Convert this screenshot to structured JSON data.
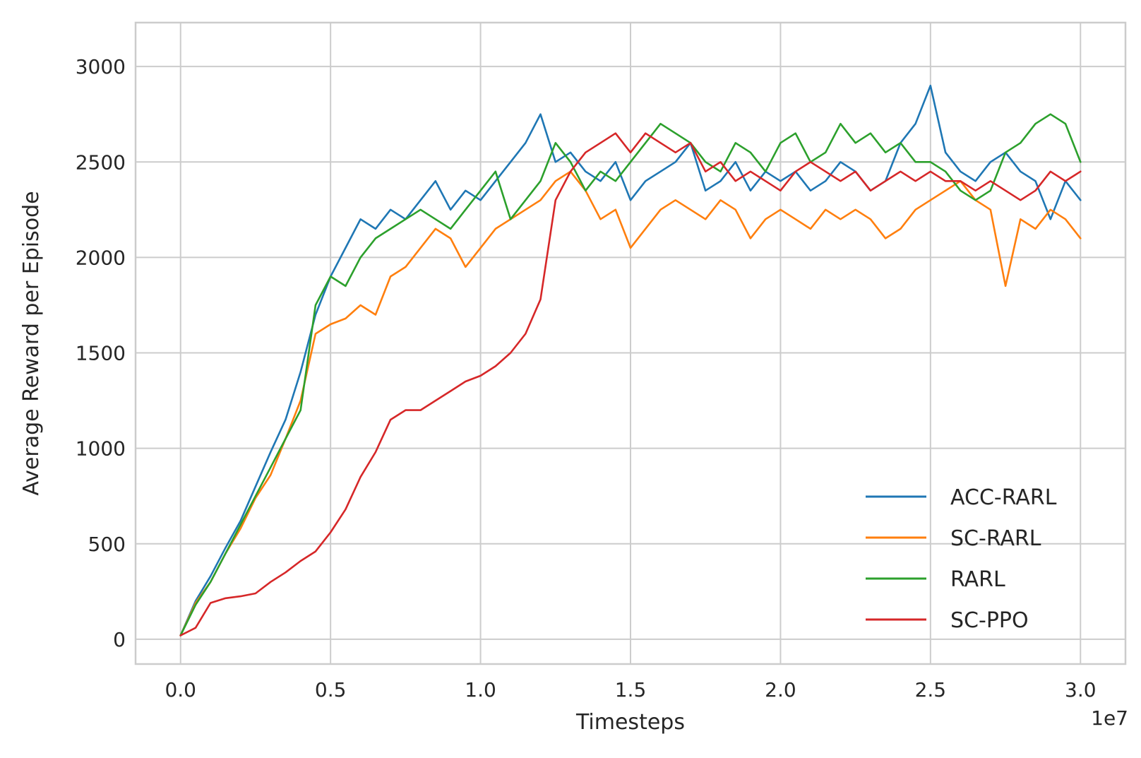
{
  "chart_data": {
    "type": "line",
    "title": "",
    "xlabel": "Timesteps",
    "ylabel": "Average Reward per Episode",
    "x_offset_label": "1e7",
    "xlim": [
      -0.15,
      3.15
    ],
    "ylim": [
      -130,
      3230
    ],
    "x_ticks": [
      0.0,
      0.5,
      1.0,
      1.5,
      2.0,
      2.5,
      3.0
    ],
    "x_tick_labels": [
      "0.0",
      "0.5",
      "1.0",
      "1.5",
      "2.0",
      "2.5",
      "3.0"
    ],
    "y_ticks": [
      0,
      500,
      1000,
      1500,
      2000,
      2500,
      3000
    ],
    "y_tick_labels": [
      "0",
      "500",
      "1000",
      "1500",
      "2000",
      "2500",
      "3000"
    ],
    "grid": true,
    "legend_position": "bottom-right",
    "x": [
      0.0,
      0.05,
      0.1,
      0.15,
      0.2,
      0.25,
      0.3,
      0.35,
      0.4,
      0.45,
      0.5,
      0.55,
      0.6,
      0.65,
      0.7,
      0.75,
      0.8,
      0.85,
      0.9,
      0.95,
      1.0,
      1.05,
      1.1,
      1.15,
      1.2,
      1.25,
      1.3,
      1.35,
      1.4,
      1.45,
      1.5,
      1.55,
      1.6,
      1.65,
      1.7,
      1.75,
      1.8,
      1.85,
      1.9,
      1.95,
      2.0,
      2.05,
      2.1,
      2.15,
      2.2,
      2.25,
      2.3,
      2.35,
      2.4,
      2.45,
      2.5,
      2.55,
      2.6,
      2.65,
      2.7,
      2.75,
      2.8,
      2.85,
      2.9,
      2.95,
      3.0
    ],
    "series": [
      {
        "name": "ACC-RARL",
        "color": "#1f77b4",
        "values": [
          20,
          200,
          330,
          480,
          620,
          800,
          980,
          1150,
          1400,
          1700,
          1900,
          2050,
          2200,
          2150,
          2250,
          2200,
          2300,
          2400,
          2250,
          2350,
          2300,
          2400,
          2500,
          2600,
          2750,
          2500,
          2550,
          2450,
          2400,
          2500,
          2300,
          2400,
          2450,
          2500,
          2600,
          2350,
          2400,
          2500,
          2350,
          2450,
          2400,
          2450,
          2350,
          2400,
          2500,
          2450,
          2350,
          2400,
          2600,
          2700,
          2900,
          2550,
          2450,
          2400,
          2500,
          2550,
          2450,
          2400,
          2200,
          2400,
          2300
        ]
      },
      {
        "name": "SC-RARL",
        "color": "#ff7f0e",
        "values": [
          20,
          190,
          300,
          450,
          580,
          740,
          860,
          1050,
          1250,
          1600,
          1650,
          1680,
          1750,
          1700,
          1900,
          1950,
          2050,
          2150,
          2100,
          1950,
          2050,
          2150,
          2200,
          2250,
          2300,
          2400,
          2450,
          2350,
          2200,
          2250,
          2050,
          2150,
          2250,
          2300,
          2250,
          2200,
          2300,
          2250,
          2100,
          2200,
          2250,
          2200,
          2150,
          2250,
          2200,
          2250,
          2200,
          2100,
          2150,
          2250,
          2300,
          2350,
          2400,
          2300,
          2250,
          1850,
          2200,
          2150,
          2250,
          2200,
          2100
        ]
      },
      {
        "name": "RARL",
        "color": "#2ca02c",
        "values": [
          20,
          180,
          300,
          450,
          600,
          750,
          900,
          1050,
          1200,
          1750,
          1900,
          1850,
          2000,
          2100,
          2150,
          2200,
          2250,
          2200,
          2150,
          2250,
          2350,
          2450,
          2200,
          2300,
          2400,
          2600,
          2500,
          2350,
          2450,
          2400,
          2500,
          2600,
          2700,
          2650,
          2600,
          2500,
          2450,
          2600,
          2550,
          2450,
          2600,
          2650,
          2500,
          2550,
          2700,
          2600,
          2650,
          2550,
          2600,
          2500,
          2500,
          2450,
          2350,
          2300,
          2350,
          2550,
          2600,
          2700,
          2750,
          2700,
          2500
        ]
      },
      {
        "name": "SC-PPO",
        "color": "#d62728",
        "values": [
          20,
          60,
          190,
          215,
          225,
          240,
          300,
          350,
          410,
          460,
          560,
          680,
          850,
          980,
          1150,
          1200,
          1200,
          1250,
          1300,
          1350,
          1380,
          1430,
          1500,
          1600,
          1780,
          2300,
          2450,
          2550,
          2600,
          2650,
          2550,
          2650,
          2600,
          2550,
          2600,
          2450,
          2500,
          2400,
          2450,
          2400,
          2350,
          2450,
          2500,
          2450,
          2400,
          2450,
          2350,
          2400,
          2450,
          2400,
          2450,
          2400,
          2400,
          2350,
          2400,
          2350,
          2300,
          2350,
          2450,
          2400,
          2450
        ]
      }
    ]
  }
}
